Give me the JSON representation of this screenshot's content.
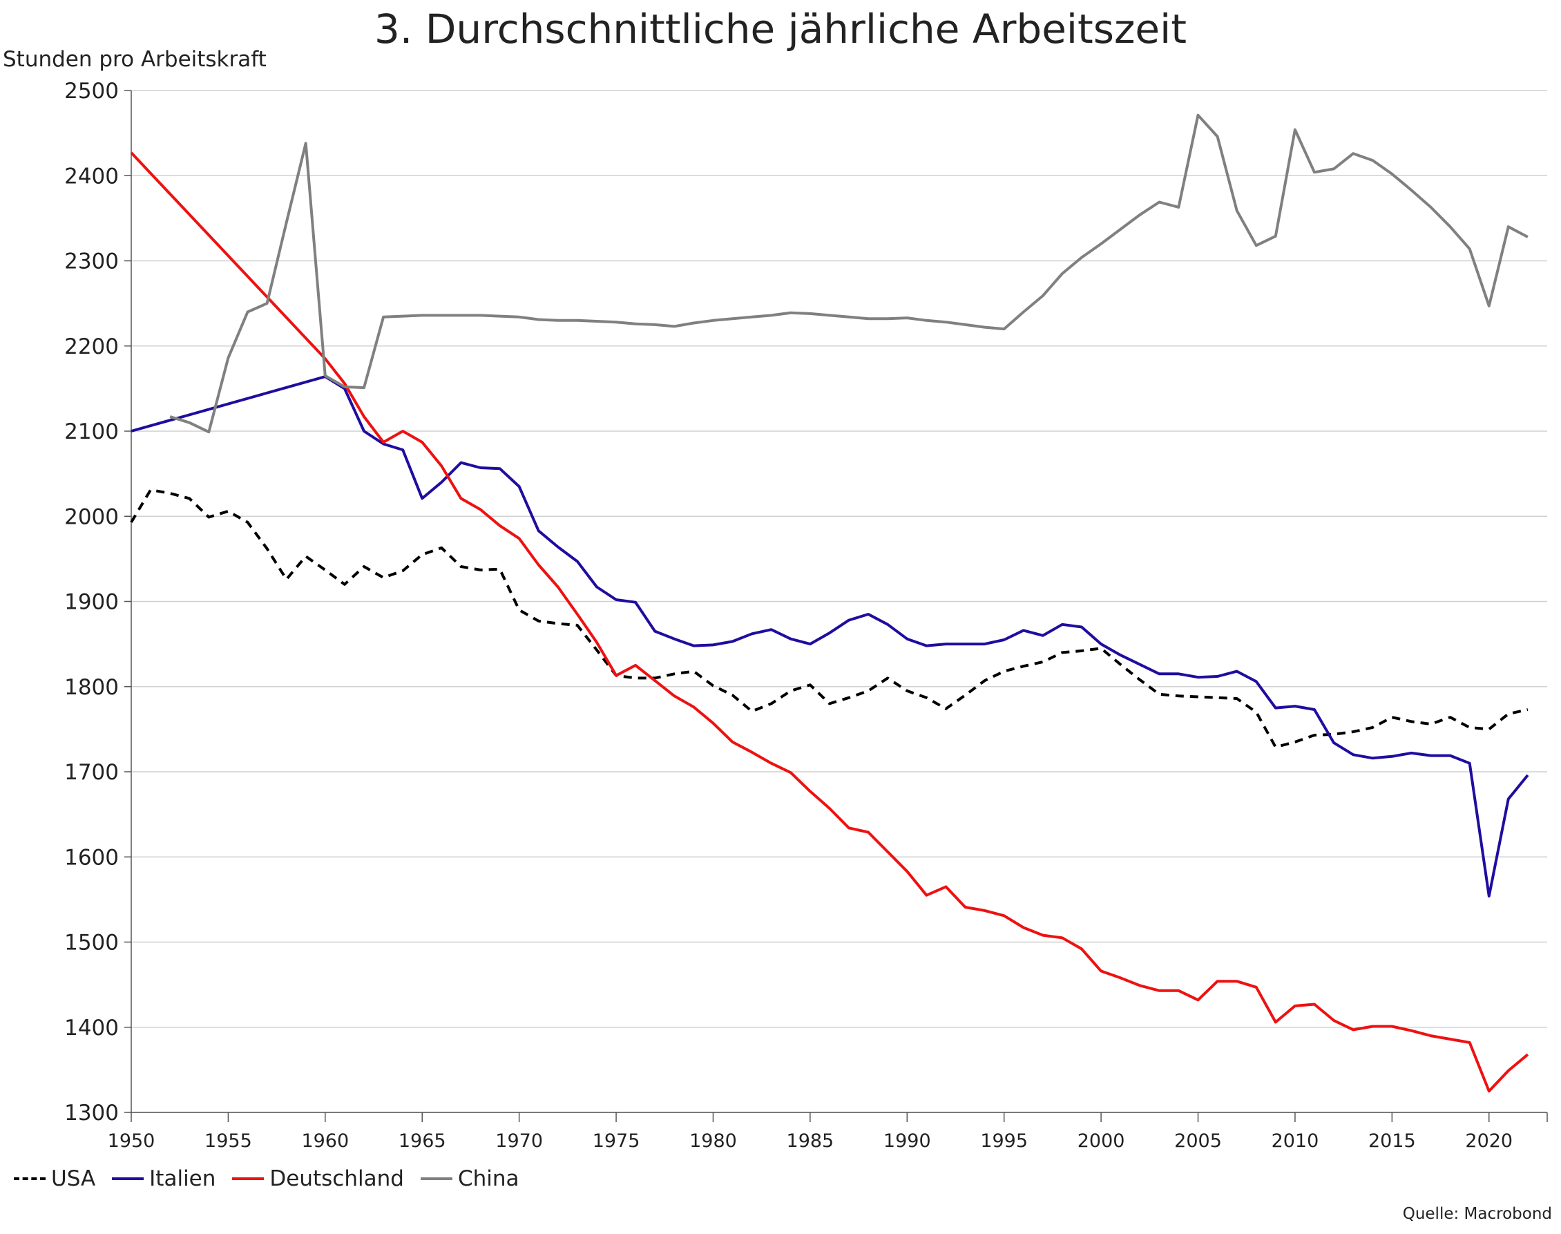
{
  "chart_data": {
    "type": "line",
    "title": "3. Durchschnittliche jährliche Arbeitszeit",
    "ylabel": "Stunden pro Arbeitskraft",
    "xlabel": "",
    "source": "Quelle: Macrobond",
    "xlim": [
      1950,
      2023
    ],
    "ylim": [
      1300,
      2500
    ],
    "x_ticks": [
      1950,
      1955,
      1960,
      1965,
      1970,
      1975,
      1980,
      1985,
      1990,
      1995,
      2000,
      2005,
      2010,
      2015,
      2020
    ],
    "y_ticks": [
      1300,
      1400,
      1500,
      1600,
      1700,
      1800,
      1900,
      2000,
      2100,
      2200,
      2300,
      2400,
      2500
    ],
    "grid": "horizontal",
    "legend_position": "bottom-left",
    "series": [
      {
        "name": "USA",
        "color": "#000000",
        "dash": "dashed",
        "x": [
          1950,
          1951,
          1952,
          1953,
          1954,
          1955,
          1956,
          1957,
          1958,
          1959,
          1960,
          1961,
          1962,
          1963,
          1964,
          1965,
          1966,
          1967,
          1968,
          1969,
          1970,
          1971,
          1972,
          1973,
          1974,
          1975,
          1976,
          1977,
          1978,
          1979,
          1980,
          1981,
          1982,
          1983,
          1984,
          1985,
          1986,
          1987,
          1988,
          1989,
          1990,
          1991,
          1992,
          1993,
          1994,
          1995,
          1996,
          1997,
          1998,
          1999,
          2000,
          2001,
          2002,
          2003,
          2004,
          2005,
          2006,
          2007,
          2008,
          2009,
          2010,
          2011,
          2012,
          2013,
          2014,
          2015,
          2016,
          2017,
          2018,
          2019,
          2020,
          2021,
          2022
        ],
        "y": [
          1993,
          2031,
          2027,
          2021,
          1999,
          2006,
          1993,
          1962,
          1926,
          1953,
          1937,
          1920,
          1941,
          1928,
          1936,
          1955,
          1963,
          1941,
          1937,
          1938,
          1890,
          1877,
          1874,
          1872,
          1843,
          1813,
          1810,
          1810,
          1815,
          1818,
          1801,
          1790,
          1771,
          1780,
          1795,
          1802,
          1780,
          1787,
          1795,
          1810,
          1795,
          1787,
          1774,
          1790,
          1807,
          1818,
          1824,
          1829,
          1840,
          1842,
          1845,
          1826,
          1808,
          1791,
          1789,
          1788,
          1787,
          1786,
          1770,
          1729,
          1735,
          1743,
          1744,
          1747,
          1752,
          1764,
          1759,
          1756,
          1764,
          1752,
          1750,
          1768,
          1773
        ]
      },
      {
        "name": "Italien",
        "color": "#1f0da0",
        "dash": "solid",
        "x": [
          1950,
          1960,
          1961,
          1962,
          1963,
          1964,
          1965,
          1966,
          1967,
          1968,
          1969,
          1970,
          1971,
          1972,
          1973,
          1974,
          1975,
          1976,
          1977,
          1978,
          1979,
          1980,
          1981,
          1982,
          1983,
          1984,
          1985,
          1986,
          1987,
          1988,
          1989,
          1990,
          1991,
          1992,
          1993,
          1994,
          1995,
          1996,
          1997,
          1998,
          1999,
          2000,
          2001,
          2002,
          2003,
          2004,
          2005,
          2006,
          2007,
          2008,
          2009,
          2010,
          2011,
          2012,
          2013,
          2014,
          2015,
          2016,
          2017,
          2018,
          2019,
          2020,
          2021,
          2022
        ],
        "y": [
          2100,
          2164,
          2150,
          2100,
          2085,
          2078,
          2021,
          2040,
          2063,
          2057,
          2056,
          2035,
          1983,
          1964,
          1947,
          1917,
          1902,
          1899,
          1865,
          1856,
          1848,
          1849,
          1853,
          1862,
          1867,
          1856,
          1850,
          1863,
          1878,
          1885,
          1873,
          1856,
          1848,
          1850,
          1850,
          1850,
          1855,
          1866,
          1860,
          1873,
          1870,
          1850,
          1837,
          1826,
          1815,
          1815,
          1811,
          1812,
          1818,
          1806,
          1775,
          1777,
          1773,
          1734,
          1720,
          1716,
          1718,
          1722,
          1719,
          1719,
          1710,
          1554,
          1668,
          1696
        ]
      },
      {
        "name": "Deutschland",
        "color": "#ee1111",
        "dash": "solid",
        "x": [
          1950,
          1960,
          1961,
          1962,
          1963,
          1964,
          1965,
          1966,
          1967,
          1968,
          1969,
          1970,
          1971,
          1972,
          1973,
          1974,
          1975,
          1976,
          1977,
          1978,
          1979,
          1980,
          1981,
          1982,
          1983,
          1984,
          1985,
          1986,
          1987,
          1988,
          1989,
          1990,
          1991,
          1992,
          1993,
          1994,
          1995,
          1996,
          1997,
          1998,
          1999,
          2000,
          2001,
          2002,
          2003,
          2004,
          2005,
          2006,
          2007,
          2008,
          2009,
          2010,
          2011,
          2012,
          2013,
          2014,
          2015,
          2016,
          2017,
          2018,
          2019,
          2020,
          2021,
          2022
        ],
        "y": [
          2427,
          2185,
          2156,
          2117,
          2087,
          2100,
          2087,
          2059,
          2021,
          2008,
          1989,
          1974,
          1943,
          1917,
          1885,
          1852,
          1813,
          1825,
          1807,
          1789,
          1776,
          1757,
          1735,
          1723,
          1710,
          1699,
          1677,
          1657,
          1634,
          1629,
          1606,
          1583,
          1555,
          1565,
          1541,
          1537,
          1531,
          1517,
          1508,
          1505,
          1492,
          1466,
          1458,
          1449,
          1443,
          1443,
          1432,
          1454,
          1454,
          1447,
          1406,
          1425,
          1427,
          1408,
          1397,
          1401,
          1401,
          1396,
          1390,
          1386,
          1382,
          1325,
          1349,
          1368
        ]
      },
      {
        "name": "China",
        "color": "#808080",
        "dash": "solid",
        "x": [
          1952,
          1953,
          1954,
          1955,
          1956,
          1957,
          1958,
          1959,
          1960,
          1961,
          1962,
          1963,
          1964,
          1965,
          1966,
          1967,
          1968,
          1969,
          1970,
          1971,
          1972,
          1973,
          1974,
          1975,
          1976,
          1977,
          1978,
          1979,
          1980,
          1981,
          1982,
          1983,
          1984,
          1985,
          1986,
          1987,
          1988,
          1989,
          1990,
          1991,
          1992,
          1993,
          1994,
          1995,
          1996,
          1997,
          1998,
          1999,
          2000,
          2001,
          2002,
          2003,
          2004,
          2005,
          2006,
          2007,
          2008,
          2009,
          2010,
          2011,
          2012,
          2013,
          2014,
          2015,
          2016,
          2017,
          2018,
          2019,
          2020,
          2021,
          2022
        ],
        "y": [
          2117,
          2110,
          2099,
          2186,
          2240,
          2250,
          2345,
          2438,
          2165,
          2152,
          2151,
          2234,
          2235,
          2236,
          2236,
          2236,
          2236,
          2235,
          2234,
          2231,
          2230,
          2230,
          2229,
          2228,
          2226,
          2225,
          2223,
          2227,
          2230,
          2232,
          2234,
          2236,
          2239,
          2238,
          2236,
          2234,
          2232,
          2232,
          2233,
          2230,
          2228,
          2225,
          2222,
          2220,
          2240,
          2259,
          2285,
          2304,
          2320,
          2337,
          2354,
          2369,
          2363,
          2471,
          2446,
          2359,
          2318,
          2329,
          2454,
          2404,
          2408,
          2426,
          2418,
          2402,
          2383,
          2363,
          2340,
          2314,
          2247,
          2340,
          2328
        ]
      }
    ]
  }
}
